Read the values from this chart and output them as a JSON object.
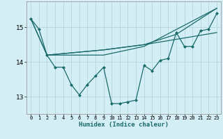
{
  "xlabel": "Humidex (Indice chaleur)",
  "background_color": "#d4eef5",
  "grid_color": "#b8d8e2",
  "line_color": "#1a6b6b",
  "xlim": [
    -0.5,
    23.5
  ],
  "ylim": [
    12.5,
    15.75
  ],
  "yticks": [
    13,
    14,
    15
  ],
  "xticks": [
    0,
    1,
    2,
    3,
    4,
    5,
    6,
    7,
    8,
    9,
    10,
    11,
    12,
    13,
    14,
    15,
    16,
    17,
    18,
    19,
    20,
    21,
    22,
    23
  ],
  "line1_x": [
    0,
    1,
    2,
    3,
    4,
    5,
    6,
    7,
    8,
    9,
    10,
    11,
    12,
    13,
    14,
    15,
    16,
    17,
    18,
    19,
    20,
    21,
    22,
    23
  ],
  "line1_y": [
    15.25,
    14.95,
    14.2,
    13.85,
    13.85,
    13.35,
    13.05,
    13.35,
    13.6,
    13.85,
    12.8,
    12.8,
    12.85,
    12.9,
    13.9,
    13.75,
    14.05,
    14.1,
    14.85,
    14.45,
    14.45,
    14.9,
    14.95,
    15.4
  ],
  "line2_x": [
    0,
    2,
    9,
    14,
    23
  ],
  "line2_y": [
    15.25,
    14.2,
    14.2,
    14.45,
    15.55
  ],
  "line3_x": [
    0,
    2,
    9,
    14,
    18,
    23
  ],
  "line3_y": [
    15.25,
    14.2,
    14.35,
    14.5,
    14.8,
    15.55
  ],
  "line4_x": [
    2,
    9,
    14,
    23
  ],
  "line4_y": [
    14.2,
    14.35,
    14.5,
    14.85
  ]
}
